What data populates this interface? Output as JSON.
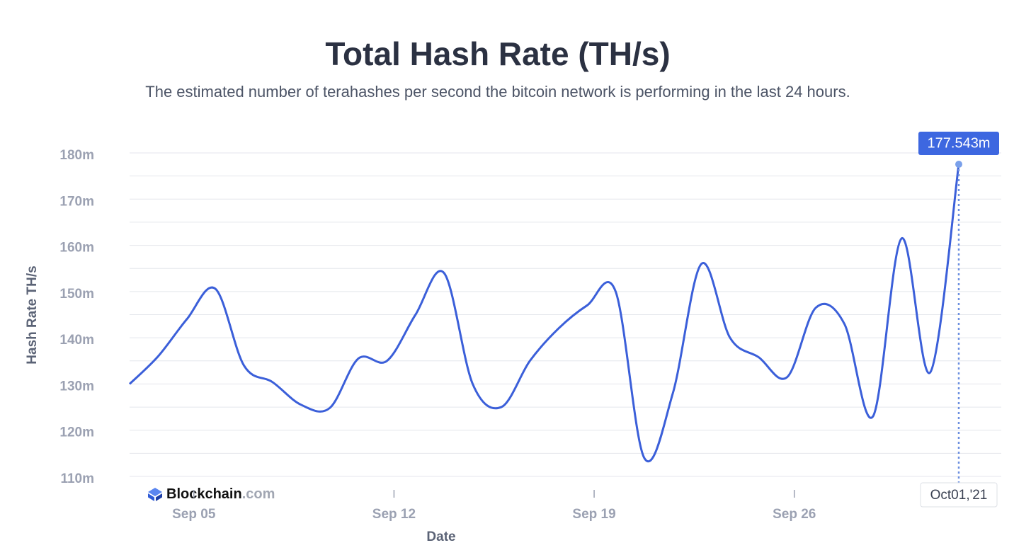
{
  "chart_data": {
    "type": "line",
    "title": "Total Hash Rate (TH/s)",
    "subtitle": "The estimated number of terahashes per second the bitcoin network is performing in the last 24 hours.",
    "x_label": "Date",
    "y_label": "Hash Rate TH/s",
    "categories": [
      null,
      null,
      "Sep 05",
      null,
      null,
      null,
      null,
      null,
      null,
      "Sep 12",
      null,
      null,
      null,
      null,
      null,
      null,
      "Sep 19",
      null,
      null,
      null,
      null,
      null,
      null,
      "Sep 26",
      null,
      null,
      null,
      null,
      null,
      null
    ],
    "series": [
      {
        "name": "Hash Rate TH/s",
        "color": "#3b5fd9",
        "values": [
          130,
          136,
          144,
          150.6,
          134,
          130.4,
          125.5,
          124.8,
          135.5,
          135,
          145,
          154,
          130,
          125,
          135,
          142,
          147,
          150,
          114,
          128,
          156,
          140,
          135.8,
          131.5,
          146.5,
          143,
          123,
          161.5,
          132.5,
          177.543
        ],
        "value_labels": [
          null,
          null,
          null,
          null,
          null,
          null,
          null,
          null,
          null,
          null,
          null,
          null,
          null,
          null,
          null,
          null,
          null,
          null,
          null,
          null,
          null,
          null,
          null,
          null,
          null,
          null,
          null,
          null,
          null,
          "177.543m"
        ]
      }
    ],
    "tooltip_date": "Oct01,'21",
    "ylim": [
      110,
      180
    ],
    "yticks": [
      {
        "value": 110,
        "label": "110m"
      },
      {
        "value": 120,
        "label": "120m"
      },
      {
        "value": 130,
        "label": "130m"
      },
      {
        "value": 140,
        "label": "140m"
      },
      {
        "value": 150,
        "label": "150m"
      },
      {
        "value": 160,
        "label": "160m"
      },
      {
        "value": 170,
        "label": "170m"
      },
      {
        "value": 180,
        "label": "180m"
      }
    ],
    "minor_yticks": [
      115,
      125,
      135,
      145,
      155,
      165,
      175
    ],
    "grid": true,
    "brand": {
      "name": "Blockchain",
      "suffix": ".com"
    }
  }
}
